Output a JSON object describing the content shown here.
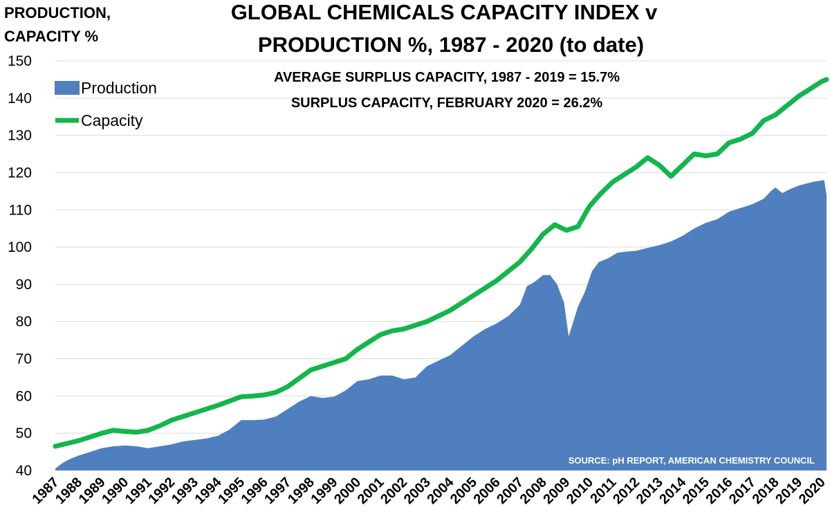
{
  "chart_data": {
    "type": "area",
    "title_line1": "GLOBAL CHEMICALS CAPACITY INDEX v",
    "title_line2": "PRODUCTION %, 1987 - 2020 (to date)",
    "subtitle_line1": "AVERAGE SURPLUS CAPACITY, 1987 - 2019 = 15.7%",
    "subtitle_line2": "SURPLUS CAPACITY, FEBRUARY 2020 = 26.2%",
    "ylabel_line1": "PRODUCTION,",
    "ylabel_line2": "CAPACITY %",
    "source": "SOURCE: pH REPORT, AMERICAN CHEMISTRY COUNCIL",
    "ylim": [
      40,
      150
    ],
    "xlim": [
      1987,
      2020.2
    ],
    "y_ticks": [
      "40",
      "50",
      "60",
      "70",
      "80",
      "90",
      "100",
      "110",
      "120",
      "130",
      "140",
      "150"
    ],
    "x_ticks": [
      "1987",
      "1988",
      "1989",
      "1990",
      "1991",
      "1992",
      "1993",
      "1994",
      "1995",
      "1996",
      "1997",
      "1998",
      "1999",
      "2000",
      "2001",
      "2002",
      "2003",
      "2004",
      "2005",
      "2006",
      "2007",
      "2008",
      "2009",
      "2010",
      "2011",
      "2012",
      "2013",
      "2014",
      "2015",
      "2016",
      "2017",
      "2018",
      "2019",
      "2020"
    ],
    "grid": true,
    "legend": {
      "position": "top-left",
      "production_label": "Production",
      "capacity_label": "Capacity"
    },
    "colors": {
      "production": "#4f7fbe",
      "capacity": "#12b64a",
      "grid": "#d9d9d9"
    },
    "series": [
      {
        "name": "Production",
        "type": "area",
        "x": [
          1987.0,
          1987.3,
          1987.6,
          1988.0,
          1988.5,
          1989.0,
          1989.5,
          1990.0,
          1990.5,
          1991.0,
          1991.5,
          1992.0,
          1992.5,
          1993.0,
          1993.5,
          1994.0,
          1994.5,
          1995.0,
          1995.5,
          1996.0,
          1996.5,
          1997.0,
          1997.5,
          1998.0,
          1998.5,
          1999.0,
          1999.5,
          2000.0,
          2000.5,
          2001.0,
          2001.5,
          2002.0,
          2002.5,
          2003.0,
          2003.5,
          2004.0,
          2004.5,
          2005.0,
          2005.5,
          2006.0,
          2006.5,
          2007.0,
          2007.3,
          2007.6,
          2008.0,
          2008.3,
          2008.6,
          2008.9,
          2009.1,
          2009.3,
          2009.5,
          2009.8,
          2010.1,
          2010.4,
          2010.8,
          2011.2,
          2011.6,
          2012.0,
          2012.5,
          2013.0,
          2013.5,
          2014.0,
          2014.5,
          2015.0,
          2015.5,
          2016.0,
          2016.5,
          2017.0,
          2017.5,
          2017.8,
          2018.0,
          2018.3,
          2018.6,
          2019.0,
          2019.3,
          2019.6,
          2019.9,
          2020.1,
          2020.2
        ],
        "values": [
          40.5,
          42.0,
          43.0,
          44.0,
          45.0,
          46.0,
          46.5,
          46.7,
          46.5,
          46.0,
          46.5,
          47.0,
          47.8,
          48.2,
          48.6,
          49.3,
          51.0,
          53.5,
          53.5,
          53.7,
          54.5,
          56.5,
          58.5,
          60.0,
          59.5,
          59.8,
          61.5,
          64.0,
          64.5,
          65.5,
          65.5,
          64.5,
          65.0,
          68.0,
          69.5,
          71.0,
          73.5,
          76.0,
          78.0,
          79.5,
          81.5,
          84.5,
          89.5,
          90.5,
          92.5,
          92.5,
          90.0,
          85.0,
          76.0,
          80.0,
          84.0,
          88.0,
          93.5,
          96.0,
          97.0,
          98.5,
          98.8,
          99.0,
          99.8,
          100.5,
          101.5,
          103.0,
          105.0,
          106.5,
          107.5,
          109.5,
          110.5,
          111.5,
          113.0,
          115.0,
          116.0,
          114.5,
          115.5,
          116.5,
          117.0,
          117.5,
          117.8,
          118.0,
          114.0
        ]
      },
      {
        "name": "Capacity",
        "type": "line",
        "x": [
          1987.0,
          1988.0,
          1989.0,
          1989.5,
          1990.0,
          1990.5,
          1991.0,
          1991.5,
          1992.0,
          1993.0,
          1994.0,
          1995.0,
          1995.5,
          1996.0,
          1996.5,
          1997.0,
          1998.0,
          1999.0,
          1999.5,
          2000.0,
          2001.0,
          2001.5,
          2002.0,
          2002.5,
          2003.0,
          2004.0,
          2005.0,
          2006.0,
          2007.0,
          2007.5,
          2008.0,
          2008.5,
          2009.0,
          2009.5,
          2010.0,
          2010.5,
          2011.0,
          2012.0,
          2012.5,
          2013.0,
          2013.5,
          2014.0,
          2014.5,
          2015.0,
          2015.5,
          2016.0,
          2016.5,
          2017.0,
          2017.5,
          2018.0,
          2018.5,
          2019.0,
          2019.5,
          2020.0,
          2020.2
        ],
        "values": [
          46.5,
          48.0,
          50.0,
          50.8,
          50.5,
          50.3,
          50.8,
          52.0,
          53.5,
          55.5,
          57.5,
          59.8,
          60.0,
          60.3,
          61.0,
          62.5,
          67.0,
          69.0,
          70.0,
          72.5,
          76.5,
          77.5,
          78.0,
          79.0,
          80.0,
          83.0,
          87.0,
          91.0,
          96.0,
          99.5,
          103.5,
          106.0,
          104.5,
          105.5,
          111.0,
          114.5,
          117.5,
          121.5,
          124.0,
          122.0,
          119.0,
          122.0,
          125.0,
          124.5,
          125.0,
          128.0,
          129.0,
          130.5,
          134.0,
          135.5,
          138.0,
          140.5,
          142.5,
          144.5,
          145.0
        ]
      }
    ]
  }
}
